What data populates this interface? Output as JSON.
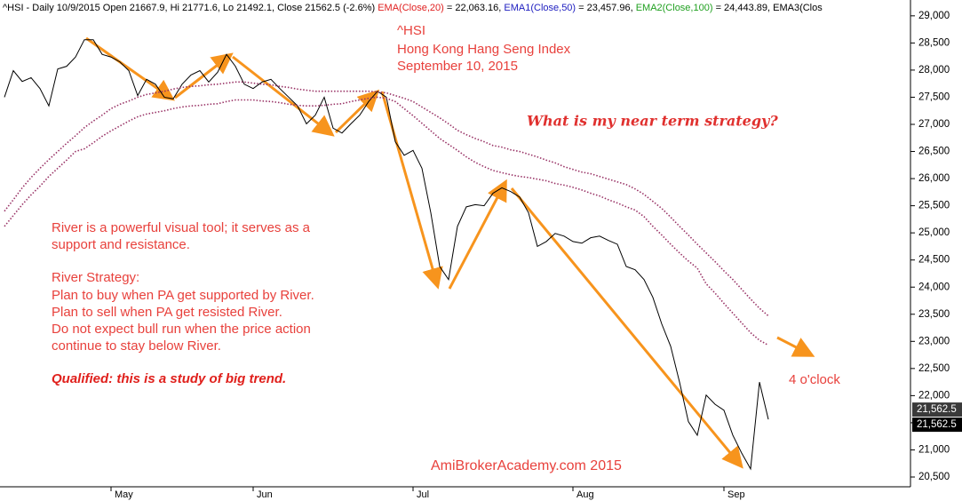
{
  "chart_data": {
    "type": "line",
    "header": [
      {
        "text": "^HSI - Daily 10/9/2015 Open 21667.9, Hi 21771.6, Lo 21492.1, Close 21562.5 (-2.6%) ",
        "color": "#000000"
      },
      {
        "text": "EMA(Close,20)",
        "color": "#e02020"
      },
      {
        "text": " = 22,063.16, ",
        "color": "#000000"
      },
      {
        "text": "EMA1(Close,50)",
        "color": "#2020c0"
      },
      {
        "text": " = 23,457.96, ",
        "color": "#000000"
      },
      {
        "text": "EMA2(Close,100)",
        "color": "#20a020"
      },
      {
        "text": " = 24,443.89, ",
        "color": "#000000"
      },
      {
        "text": "EMA3(Clos",
        "color": "#000000"
      }
    ],
    "title_lines": [
      "^HSI",
      "Hong Kong Hang Seng Index",
      "September 10, 2015"
    ],
    "question": "What is my near term strategy?",
    "notes": [
      "River is a powerful visual tool; it serves as a",
      "support and resistance.",
      "River Strategy:",
      "Plan to buy when PA get supported by River.",
      "Plan to sell when PA get resisted River.",
      "Do not expect bull run when the price action",
      "continue to stay below River."
    ],
    "qualified": "Qualified: this is a study of big trend.",
    "clock_note": "4 o'clock",
    "watermark": "AmiBrokerAcademy.com 2015",
    "price_tag": "21,562.5",
    "categories": [
      null,
      null,
      null,
      null,
      null,
      null,
      null,
      null,
      null,
      null,
      null,
      null,
      "May",
      null,
      null,
      null,
      null,
      null,
      null,
      null,
      null,
      null,
      null,
      null,
      null,
      null,
      null,
      null,
      "Jun",
      null,
      null,
      null,
      null,
      null,
      null,
      null,
      null,
      null,
      null,
      null,
      null,
      null,
      null,
      null,
      null,
      null,
      "Jul",
      null,
      null,
      null,
      null,
      null,
      null,
      null,
      null,
      null,
      null,
      null,
      null,
      null,
      null,
      null,
      null,
      null,
      "Aug",
      null,
      null,
      null,
      null,
      null,
      null,
      null,
      null,
      null,
      null,
      null,
      null,
      null,
      null,
      null,
      null,
      "Sep",
      null,
      null,
      null,
      null,
      null,
      null,
      null,
      null,
      null,
      null,
      null,
      null,
      null,
      null,
      null,
      null,
      null,
      null,
      null,
      null,
      null
    ],
    "series": [
      {
        "color": "#000000",
        "style": "solid",
        "values": [
          27500,
          27990,
          27790,
          27860,
          27660,
          27340,
          28020,
          28070,
          28240,
          28560,
          28560,
          28290,
          28240,
          28150,
          27990,
          27530,
          27830,
          27740,
          27500,
          27470,
          27740,
          27910,
          27990,
          27780,
          27960,
          28290,
          28070,
          27740,
          27660,
          27780,
          27830,
          27660,
          27500,
          27340,
          27010,
          27170,
          27500,
          26930,
          26840,
          27010,
          27170,
          27420,
          27610,
          27500,
          26680,
          26430,
          26520,
          26190,
          25370,
          24380,
          24140,
          25120,
          25480,
          25520,
          25500,
          25730,
          25830,
          25760,
          25660,
          25370,
          24750,
          24840,
          24990,
          24940,
          24840,
          24810,
          24910,
          24940,
          24860,
          24790,
          24380,
          24320,
          24140,
          23810,
          23320,
          22910,
          22250,
          21520,
          21270,
          22010,
          21840,
          21730,
          21270,
          20940,
          20650,
          22250,
          21562.5,
          null,
          null,
          null,
          null,
          null,
          null,
          null,
          null,
          null,
          null,
          null,
          null,
          null,
          null,
          null,
          null
        ]
      },
      {
        "color": "#993366",
        "style": "dotted",
        "values": [
          25400,
          25610,
          25830,
          26020,
          26190,
          26350,
          26500,
          26650,
          26790,
          26940,
          27060,
          27170,
          27290,
          27370,
          27430,
          27500,
          27550,
          27580,
          27610,
          27650,
          27680,
          27700,
          27710,
          27730,
          27740,
          27760,
          27780,
          27780,
          27760,
          27740,
          27730,
          27700,
          27680,
          27650,
          27630,
          27610,
          27610,
          27610,
          27610,
          27610,
          27610,
          27610,
          27600,
          27580,
          27530,
          27480,
          27420,
          27320,
          27220,
          27120,
          27010,
          26890,
          26810,
          26740,
          26680,
          26610,
          26580,
          26530,
          26500,
          26450,
          26400,
          26340,
          26290,
          26220,
          26170,
          26120,
          26090,
          26040,
          25990,
          25940,
          25890,
          25810,
          25710,
          25580,
          25450,
          25290,
          25120,
          24960,
          24790,
          24630,
          24470,
          24300,
          24140,
          23960,
          23780,
          23610,
          23470,
          null,
          null,
          null,
          null,
          null,
          null,
          null,
          null,
          null,
          null,
          null,
          null,
          null,
          null,
          null,
          null
        ]
      },
      {
        "color": "#993366",
        "style": "dotted",
        "values": [
          25120,
          25320,
          25520,
          25700,
          25860,
          26040,
          26190,
          26340,
          26500,
          26550,
          26660,
          26780,
          26880,
          26970,
          27060,
          27140,
          27190,
          27220,
          27250,
          27290,
          27320,
          27340,
          27350,
          27370,
          27380,
          27420,
          27450,
          27450,
          27450,
          27430,
          27420,
          27400,
          27370,
          27350,
          27340,
          27340,
          27350,
          27370,
          27380,
          27420,
          27450,
          27480,
          27500,
          27480,
          27420,
          27290,
          27160,
          27020,
          26880,
          26740,
          26630,
          26520,
          26400,
          26300,
          26220,
          26150,
          26110,
          26070,
          26040,
          26020,
          25990,
          25960,
          25910,
          25880,
          25840,
          25790,
          25730,
          25680,
          25610,
          25550,
          25480,
          25420,
          25300,
          25120,
          24960,
          24790,
          24630,
          24480,
          24350,
          24060,
          23890,
          23700,
          23520,
          23340,
          23160,
          23020,
          22930,
          null,
          null,
          null,
          null,
          null,
          null,
          null,
          null,
          null,
          null,
          null,
          null,
          null,
          null,
          null,
          null
        ]
      }
    ],
    "ylim": [
      20320,
      29210
    ],
    "yticks": [
      {
        "value": 20500,
        "label": "20,500"
      },
      {
        "value": 21000,
        "label": "21,000"
      },
      {
        "value": 21500,
        "label": "21,500"
      },
      {
        "value": 22000,
        "label": "22,000"
      },
      {
        "value": 22500,
        "label": "22,500"
      },
      {
        "value": 23000,
        "label": "23,000"
      },
      {
        "value": 23500,
        "label": "23,500"
      },
      {
        "value": 24000,
        "label": "24,000"
      },
      {
        "value": 24500,
        "label": "24,500"
      },
      {
        "value": 25000,
        "label": "25,000"
      },
      {
        "value": 25500,
        "label": "25,500"
      },
      {
        "value": 26000,
        "label": "26,000"
      },
      {
        "value": 26500,
        "label": "26,500"
      },
      {
        "value": 27000,
        "label": "27,000"
      },
      {
        "value": 27500,
        "label": "27,500"
      },
      {
        "value": 28000,
        "label": "28,000"
      },
      {
        "value": 28500,
        "label": "28,500"
      },
      {
        "value": 29000,
        "label": "29,000"
      }
    ],
    "grid": false
  }
}
